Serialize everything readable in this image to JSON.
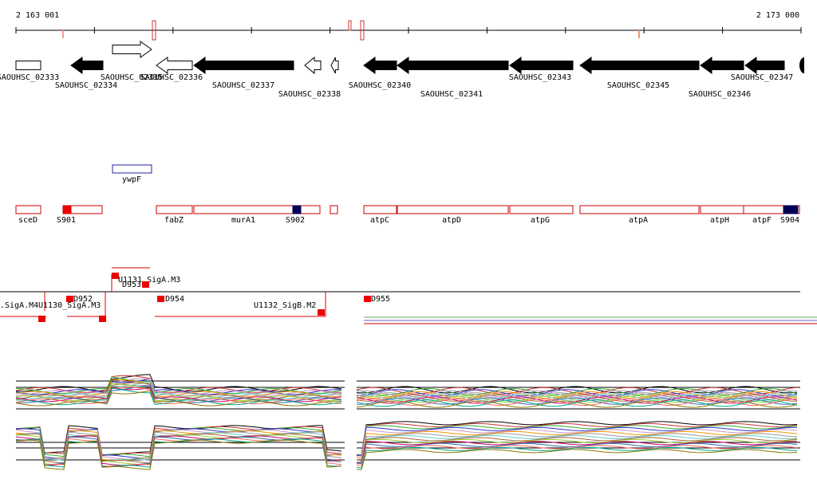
{
  "axis": {
    "start": "2 163 001",
    "end": "2 173 000"
  },
  "genes": [
    {
      "label": "SAOUHSC_02333"
    },
    {
      "label": "SAOUHSC_02334"
    },
    {
      "label": "SAOUHSC_02335"
    },
    {
      "label": "SAOUHSC_02336"
    },
    {
      "label": "SAOUHSC_02337"
    },
    {
      "label": "SAOUHSC_02338"
    },
    {
      "label": "SAOUHSC_02340"
    },
    {
      "label": "SAOUHSC_02341"
    },
    {
      "label": "SAOUHSC_02343"
    },
    {
      "label": "SAOUHSC_02345"
    },
    {
      "label": "SAOUHSC_02346"
    },
    {
      "label": "SAOUHSC_02347"
    }
  ],
  "features": [
    {
      "label": "ywpF"
    }
  ],
  "operons": [
    {
      "label": "sceD"
    },
    {
      "label": "S901"
    },
    {
      "label": "fabZ"
    },
    {
      "label": "murA1"
    },
    {
      "label": "S902"
    },
    {
      "label": "atpC"
    },
    {
      "label": "atpD"
    },
    {
      "label": "atpG"
    },
    {
      "label": "atpA"
    },
    {
      "label": "atpH"
    },
    {
      "label": "atpF"
    },
    {
      "label": "S904"
    }
  ],
  "promoters": [
    {
      "label": "U1131_SigA.M3"
    },
    {
      "label": "D953"
    },
    {
      "label": ".SigA.M4"
    },
    {
      "label": "U1130_SigA.M3"
    },
    {
      "label": "D952"
    },
    {
      "label": "D954"
    },
    {
      "label": "U1132_SigB.M2"
    },
    {
      "label": "D955"
    }
  ]
}
